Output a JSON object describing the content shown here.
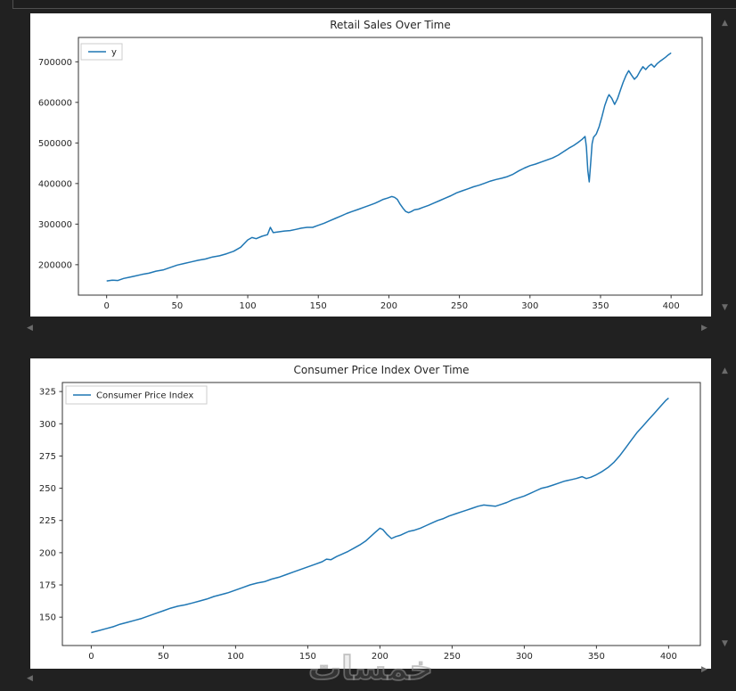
{
  "window": {
    "background": "#212121",
    "panel_color": "#ffffff"
  },
  "icons": {
    "scroll_up": "▲",
    "scroll_down": "▼",
    "scroll_left": "◀",
    "scroll_right": "▶"
  },
  "watermark": {
    "text": "خمسات"
  },
  "chart_data": [
    {
      "type": "line",
      "title": "Retail Sales Over Time",
      "xlabel": "",
      "ylabel": "",
      "grid": false,
      "legend": {
        "entries": [
          "y"
        ],
        "position": "upper-left"
      },
      "frame_color": "#333333",
      "text_color": "#262626",
      "x_ticks": [
        0,
        50,
        100,
        150,
        200,
        250,
        300,
        350,
        400
      ],
      "y_ticks": [
        200000,
        300000,
        400000,
        500000,
        600000,
        700000
      ],
      "xlim": [
        -20,
        422
      ],
      "ylim": [
        125000,
        760000
      ],
      "series": [
        {
          "name": "y",
          "color": "#1f77b4",
          "points": [
            [
              0,
              160000
            ],
            [
              4,
              162000
            ],
            [
              8,
              161000
            ],
            [
              12,
              166000
            ],
            [
              16,
              169000
            ],
            [
              20,
              172000
            ],
            [
              25,
              176000
            ],
            [
              30,
              179000
            ],
            [
              35,
              184000
            ],
            [
              40,
              187000
            ],
            [
              45,
              193000
            ],
            [
              50,
              199000
            ],
            [
              55,
              203000
            ],
            [
              60,
              207000
            ],
            [
              65,
              211000
            ],
            [
              70,
              214000
            ],
            [
              75,
              219000
            ],
            [
              80,
              222000
            ],
            [
              85,
              227000
            ],
            [
              90,
              233000
            ],
            [
              95,
              243000
            ],
            [
              100,
              261000
            ],
            [
              103,
              267000
            ],
            [
              106,
              264000
            ],
            [
              110,
              270000
            ],
            [
              114,
              274000
            ],
            [
              116,
              292000
            ],
            [
              118,
              279000
            ],
            [
              122,
              281000
            ],
            [
              126,
              283000
            ],
            [
              130,
              284000
            ],
            [
              134,
              287000
            ],
            [
              138,
              290000
            ],
            [
              142,
              292000
            ],
            [
              146,
              292000
            ],
            [
              150,
              297000
            ],
            [
              154,
              302000
            ],
            [
              158,
              308000
            ],
            [
              162,
              314000
            ],
            [
              166,
              320000
            ],
            [
              170,
              326000
            ],
            [
              174,
              331000
            ],
            [
              178,
              336000
            ],
            [
              182,
              341000
            ],
            [
              186,
              346000
            ],
            [
              190,
              351000
            ],
            [
              193,
              356000
            ],
            [
              196,
              361000
            ],
            [
              199,
              364000
            ],
            [
              202,
              368000
            ],
            [
              204,
              366000
            ],
            [
              206,
              361000
            ],
            [
              208,
              349000
            ],
            [
              210,
              339000
            ],
            [
              212,
              331000
            ],
            [
              214,
              328000
            ],
            [
              216,
              331000
            ],
            [
              218,
              335000
            ],
            [
              221,
              337000
            ],
            [
              224,
              341000
            ],
            [
              228,
              346000
            ],
            [
              232,
              352000
            ],
            [
              236,
              358000
            ],
            [
              240,
              364000
            ],
            [
              244,
              370000
            ],
            [
              248,
              377000
            ],
            [
              252,
              382000
            ],
            [
              256,
              387000
            ],
            [
              260,
              392000
            ],
            [
              264,
              396000
            ],
            [
              268,
              401000
            ],
            [
              272,
              406000
            ],
            [
              276,
              410000
            ],
            [
              280,
              413000
            ],
            [
              284,
              417000
            ],
            [
              288,
              423000
            ],
            [
              292,
              431000
            ],
            [
              296,
              438000
            ],
            [
              300,
              444000
            ],
            [
              304,
              448000
            ],
            [
              308,
              453000
            ],
            [
              312,
              458000
            ],
            [
              316,
              463000
            ],
            [
              320,
              470000
            ],
            [
              324,
              479000
            ],
            [
              328,
              488000
            ],
            [
              331,
              494000
            ],
            [
              334,
              501000
            ],
            [
              337,
              509000
            ],
            [
              339,
              516000
            ],
            [
              340,
              490000
            ],
            [
              341,
              432000
            ],
            [
              342,
              404000
            ],
            [
              343,
              450000
            ],
            [
              344,
              498000
            ],
            [
              345,
              514000
            ],
            [
              347,
              522000
            ],
            [
              349,
              540000
            ],
            [
              351,
              565000
            ],
            [
              353,
              592000
            ],
            [
              355,
              612000
            ],
            [
              356,
              619000
            ],
            [
              358,
              610000
            ],
            [
              360,
              595000
            ],
            [
              362,
              609000
            ],
            [
              364,
              629000
            ],
            [
              366,
              649000
            ],
            [
              368,
              666000
            ],
            [
              370,
              678000
            ],
            [
              372,
              667000
            ],
            [
              374,
              657000
            ],
            [
              376,
              664000
            ],
            [
              378,
              677000
            ],
            [
              380,
              688000
            ],
            [
              382,
              681000
            ],
            [
              384,
              689000
            ],
            [
              386,
              694000
            ],
            [
              388,
              687000
            ],
            [
              390,
              695000
            ],
            [
              392,
              701000
            ],
            [
              394,
              706000
            ],
            [
              396,
              711000
            ],
            [
              398,
              717000
            ],
            [
              400,
              722000
            ]
          ]
        }
      ]
    },
    {
      "type": "line",
      "title": "Consumer Price Index Over Time",
      "xlabel": "",
      "ylabel": "",
      "grid": false,
      "legend": {
        "entries": [
          "Consumer Price Index"
        ],
        "position": "upper-left"
      },
      "frame_color": "#333333",
      "text_color": "#262626",
      "x_ticks": [
        0,
        50,
        100,
        150,
        200,
        250,
        300,
        350,
        400
      ],
      "y_ticks": [
        150,
        175,
        200,
        225,
        250,
        275,
        300,
        325
      ],
      "xlim": [
        -20,
        422
      ],
      "ylim": [
        128,
        332
      ],
      "series": [
        {
          "name": "Consumer Price Index",
          "color": "#1f77b4",
          "points": [
            [
              0,
              138
            ],
            [
              5,
              139.5
            ],
            [
              10,
              141
            ],
            [
              15,
              142.5
            ],
            [
              20,
              144.5
            ],
            [
              25,
              146
            ],
            [
              30,
              147.5
            ],
            [
              35,
              149
            ],
            [
              40,
              151
            ],
            [
              45,
              153
            ],
            [
              50,
              155
            ],
            [
              55,
              157
            ],
            [
              60,
              158.5
            ],
            [
              65,
              159.5
            ],
            [
              70,
              161
            ],
            [
              75,
              162.5
            ],
            [
              80,
              164
            ],
            [
              85,
              166
            ],
            [
              90,
              167.5
            ],
            [
              95,
              169
            ],
            [
              100,
              171
            ],
            [
              105,
              173
            ],
            [
              110,
              175
            ],
            [
              115,
              176.5
            ],
            [
              120,
              177.5
            ],
            [
              125,
              179.5
            ],
            [
              130,
              181
            ],
            [
              135,
              183
            ],
            [
              140,
              185
            ],
            [
              145,
              187
            ],
            [
              150,
              189
            ],
            [
              155,
              191
            ],
            [
              160,
              193
            ],
            [
              163,
              195
            ],
            [
              166,
              194.5
            ],
            [
              170,
              197
            ],
            [
              174,
              199
            ],
            [
              178,
              201
            ],
            [
              182,
              203.5
            ],
            [
              186,
              206
            ],
            [
              190,
              209
            ],
            [
              194,
              213
            ],
            [
              197,
              216
            ],
            [
              200,
              219
            ],
            [
              202,
              218
            ],
            [
              205,
              214
            ],
            [
              208,
              211
            ],
            [
              211,
              212.5
            ],
            [
              214,
              213.5
            ],
            [
              217,
              215
            ],
            [
              220,
              216.5
            ],
            [
              224,
              217.5
            ],
            [
              228,
              219
            ],
            [
              232,
              221
            ],
            [
              236,
              223
            ],
            [
              240,
              225
            ],
            [
              244,
              226.5
            ],
            [
              248,
              228.5
            ],
            [
              252,
              230
            ],
            [
              256,
              231.5
            ],
            [
              260,
              233
            ],
            [
              264,
              234.5
            ],
            [
              268,
              236
            ],
            [
              272,
              237
            ],
            [
              276,
              236.5
            ],
            [
              280,
              236
            ],
            [
              284,
              237.5
            ],
            [
              288,
              239
            ],
            [
              292,
              241
            ],
            [
              296,
              242.5
            ],
            [
              300,
              244
            ],
            [
              304,
              246
            ],
            [
              308,
              248
            ],
            [
              312,
              250
            ],
            [
              316,
              251
            ],
            [
              320,
              252.5
            ],
            [
              324,
              254
            ],
            [
              328,
              255.5
            ],
            [
              332,
              256.5
            ],
            [
              336,
              257.5
            ],
            [
              340,
              259
            ],
            [
              343,
              257.5
            ],
            [
              346,
              258.5
            ],
            [
              350,
              260.5
            ],
            [
              354,
              263
            ],
            [
              358,
              266
            ],
            [
              362,
              270
            ],
            [
              366,
              275
            ],
            [
              370,
              281
            ],
            [
              374,
              287
            ],
            [
              378,
              293
            ],
            [
              382,
              298
            ],
            [
              386,
              303
            ],
            [
              390,
              308
            ],
            [
              394,
              313
            ],
            [
              398,
              318
            ],
            [
              400,
              320
            ]
          ]
        }
      ]
    }
  ]
}
